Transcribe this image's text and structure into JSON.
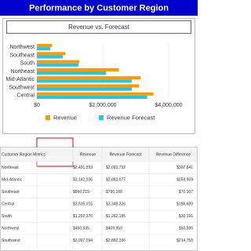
{
  "header": {
    "title": "Performance by Customer Region"
  },
  "chart_data": {
    "type": "hbar",
    "title": "Revenue vs. Forecast",
    "categories": [
      "Northwest",
      "Southeast",
      "South",
      "Northeast",
      "Mid-Atlantic",
      "Southwest",
      "Central"
    ],
    "series": [
      {
        "name": "Revenue",
        "color": "#ff9900",
        "values": [
          460535,
          860215,
          1292376,
          2491593,
          3142036,
          3097094,
          3535015
        ]
      },
      {
        "name": "Revenue Forecast",
        "color": "#1ec8e6",
        "values": [
          409950,
          790108,
          1262185,
          2093752,
          2882077,
          2882336,
          3348326
        ]
      }
    ],
    "xlim": [
      0,
      4000000
    ],
    "xticks": [
      {
        "value": 0,
        "label": "$0"
      },
      {
        "value": 2000000,
        "label": "$2,000,000"
      },
      {
        "value": 4000000,
        "label": "$4,000,000"
      }
    ],
    "grid": true,
    "legend": "bottom"
  },
  "table": {
    "header": [
      "Customer Region",
      "Metrics",
      "Revenue",
      "Revenue Forecast",
      "Revenue Difference"
    ],
    "rows": [
      [
        "Northeast",
        "$2,491,593",
        "$2,093,752",
        "$397,841"
      ],
      [
        "Mid-Atlantic",
        "$3,142,036",
        "$2,882,077",
        "$259,959"
      ],
      [
        "Southeast",
        "$860,215",
        "$790,108",
        "$70,107"
      ],
      [
        "Central",
        "$3,535,015",
        "$3,348,326",
        "$186,689"
      ],
      [
        "South",
        "$1,292,376",
        "$1,262,185",
        "$30,191"
      ],
      [
        "Northwest",
        "$460,535",
        "$409,950",
        "$50,585"
      ],
      [
        "Southwest",
        "$3,097,094",
        "$2,882,336",
        "$214,758"
      ]
    ]
  }
}
